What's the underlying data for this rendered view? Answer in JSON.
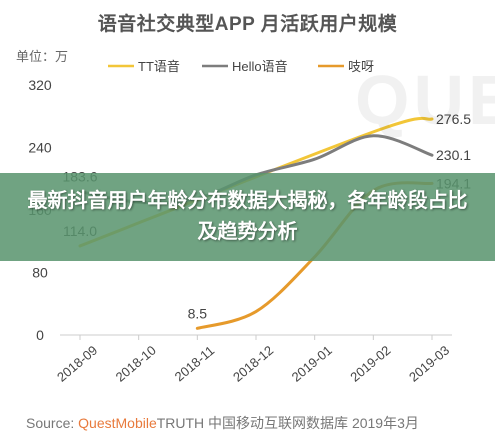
{
  "title": "语音社交典型APP 月活跃用户规模",
  "unit": "单位：万",
  "banner": "最新抖音用户年龄分布数据大揭秘，各年龄段占比及趋势分析",
  "source": {
    "prefix": "Source:",
    "brand": "QuestMobile",
    "rest": "TRUTH 中国移动互联网数据库 2019年3月"
  },
  "watermark": "QUES",
  "colors": {
    "TT语音": "#f2c638",
    "Hello语音": "#7d7d7d",
    "吱呀": "#e69a2b",
    "axis": "#cccccc",
    "label": "#444444"
  },
  "chart_data": {
    "type": "line",
    "title": "语音社交典型APP 月活跃用户规模",
    "ylabel": "单位：万",
    "ylim": [
      0,
      320
    ],
    "yticks": [
      0,
      80,
      160,
      240,
      320
    ],
    "grid": false,
    "legend_position": "top",
    "categories": [
      "2018-09",
      "2018-10",
      "2018-11",
      "2018-12",
      "2019-01",
      "2019-02",
      "2019-03"
    ],
    "series": [
      {
        "name": "TT语音",
        "values": [
          114.0,
          null,
          null,
          null,
          null,
          260,
          276.5
        ],
        "labels": [
          "114.0",
          null,
          null,
          null,
          null,
          null,
          "276.5"
        ]
      },
      {
        "name": "Hello语音",
        "values": [
          183.6,
          170,
          175,
          205,
          225,
          255,
          230.1
        ],
        "labels": [
          "183.6",
          null,
          null,
          null,
          null,
          null,
          "230.1"
        ]
      },
      {
        "name": "吱呀",
        "values": [
          null,
          null,
          8.5,
          30,
          100,
          185,
          194.1
        ],
        "labels": [
          null,
          null,
          "8.5",
          null,
          null,
          null,
          "194.1"
        ]
      }
    ]
  }
}
